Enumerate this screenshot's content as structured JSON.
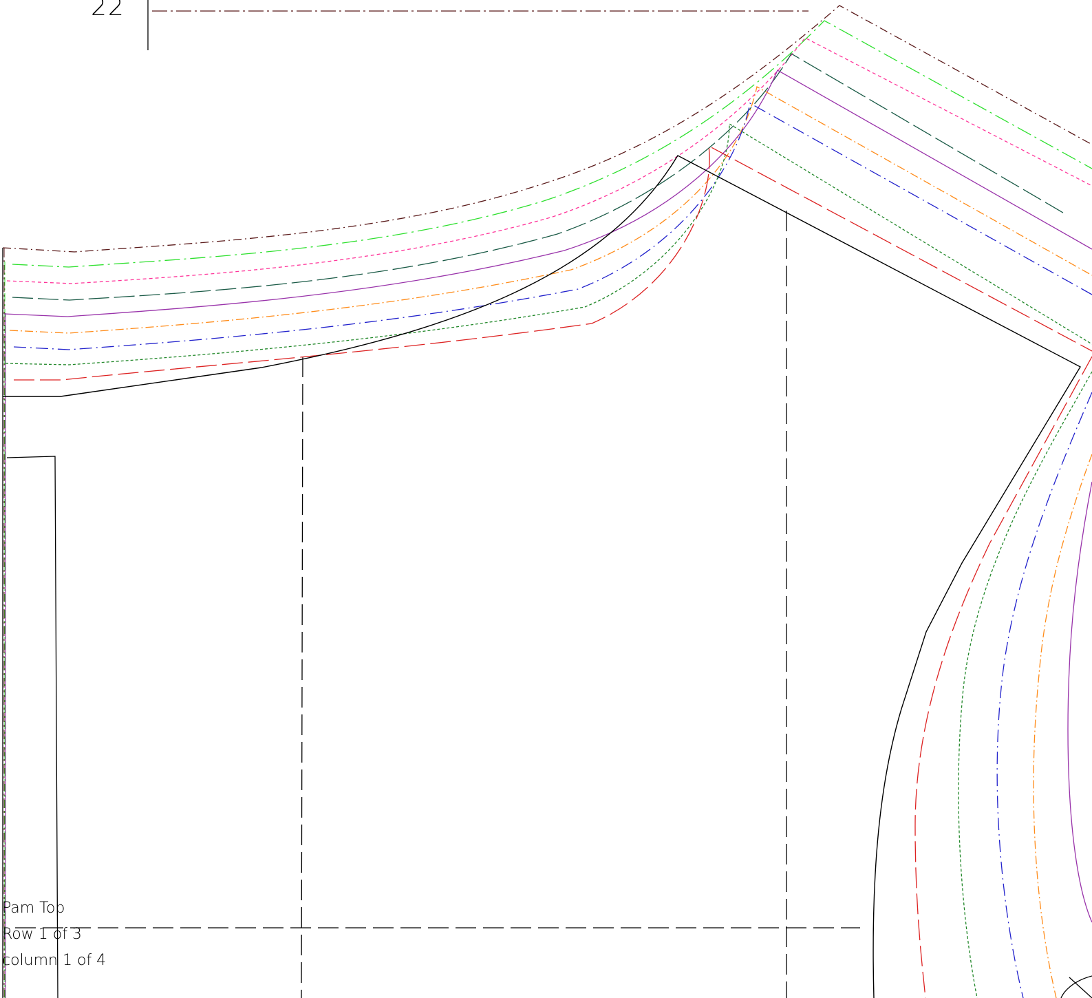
{
  "sheet": {
    "page_number": "22",
    "title_block": {
      "pattern_name": "Pam Top",
      "row_text": "Row 1  of 3",
      "column_text": "column  1  of 4"
    }
  },
  "size_lines": {
    "colors": {
      "cut_line": "#000000",
      "brown": "#5a1a1a",
      "green": "#2ee02e",
      "pink": "#ff3399",
      "dark_teal": "#1a5a46",
      "purple": "#9933aa",
      "orange": "#ff8c1a",
      "blue": "#2222cc",
      "dark_green": "#22882a",
      "red": "#dd2222"
    }
  }
}
